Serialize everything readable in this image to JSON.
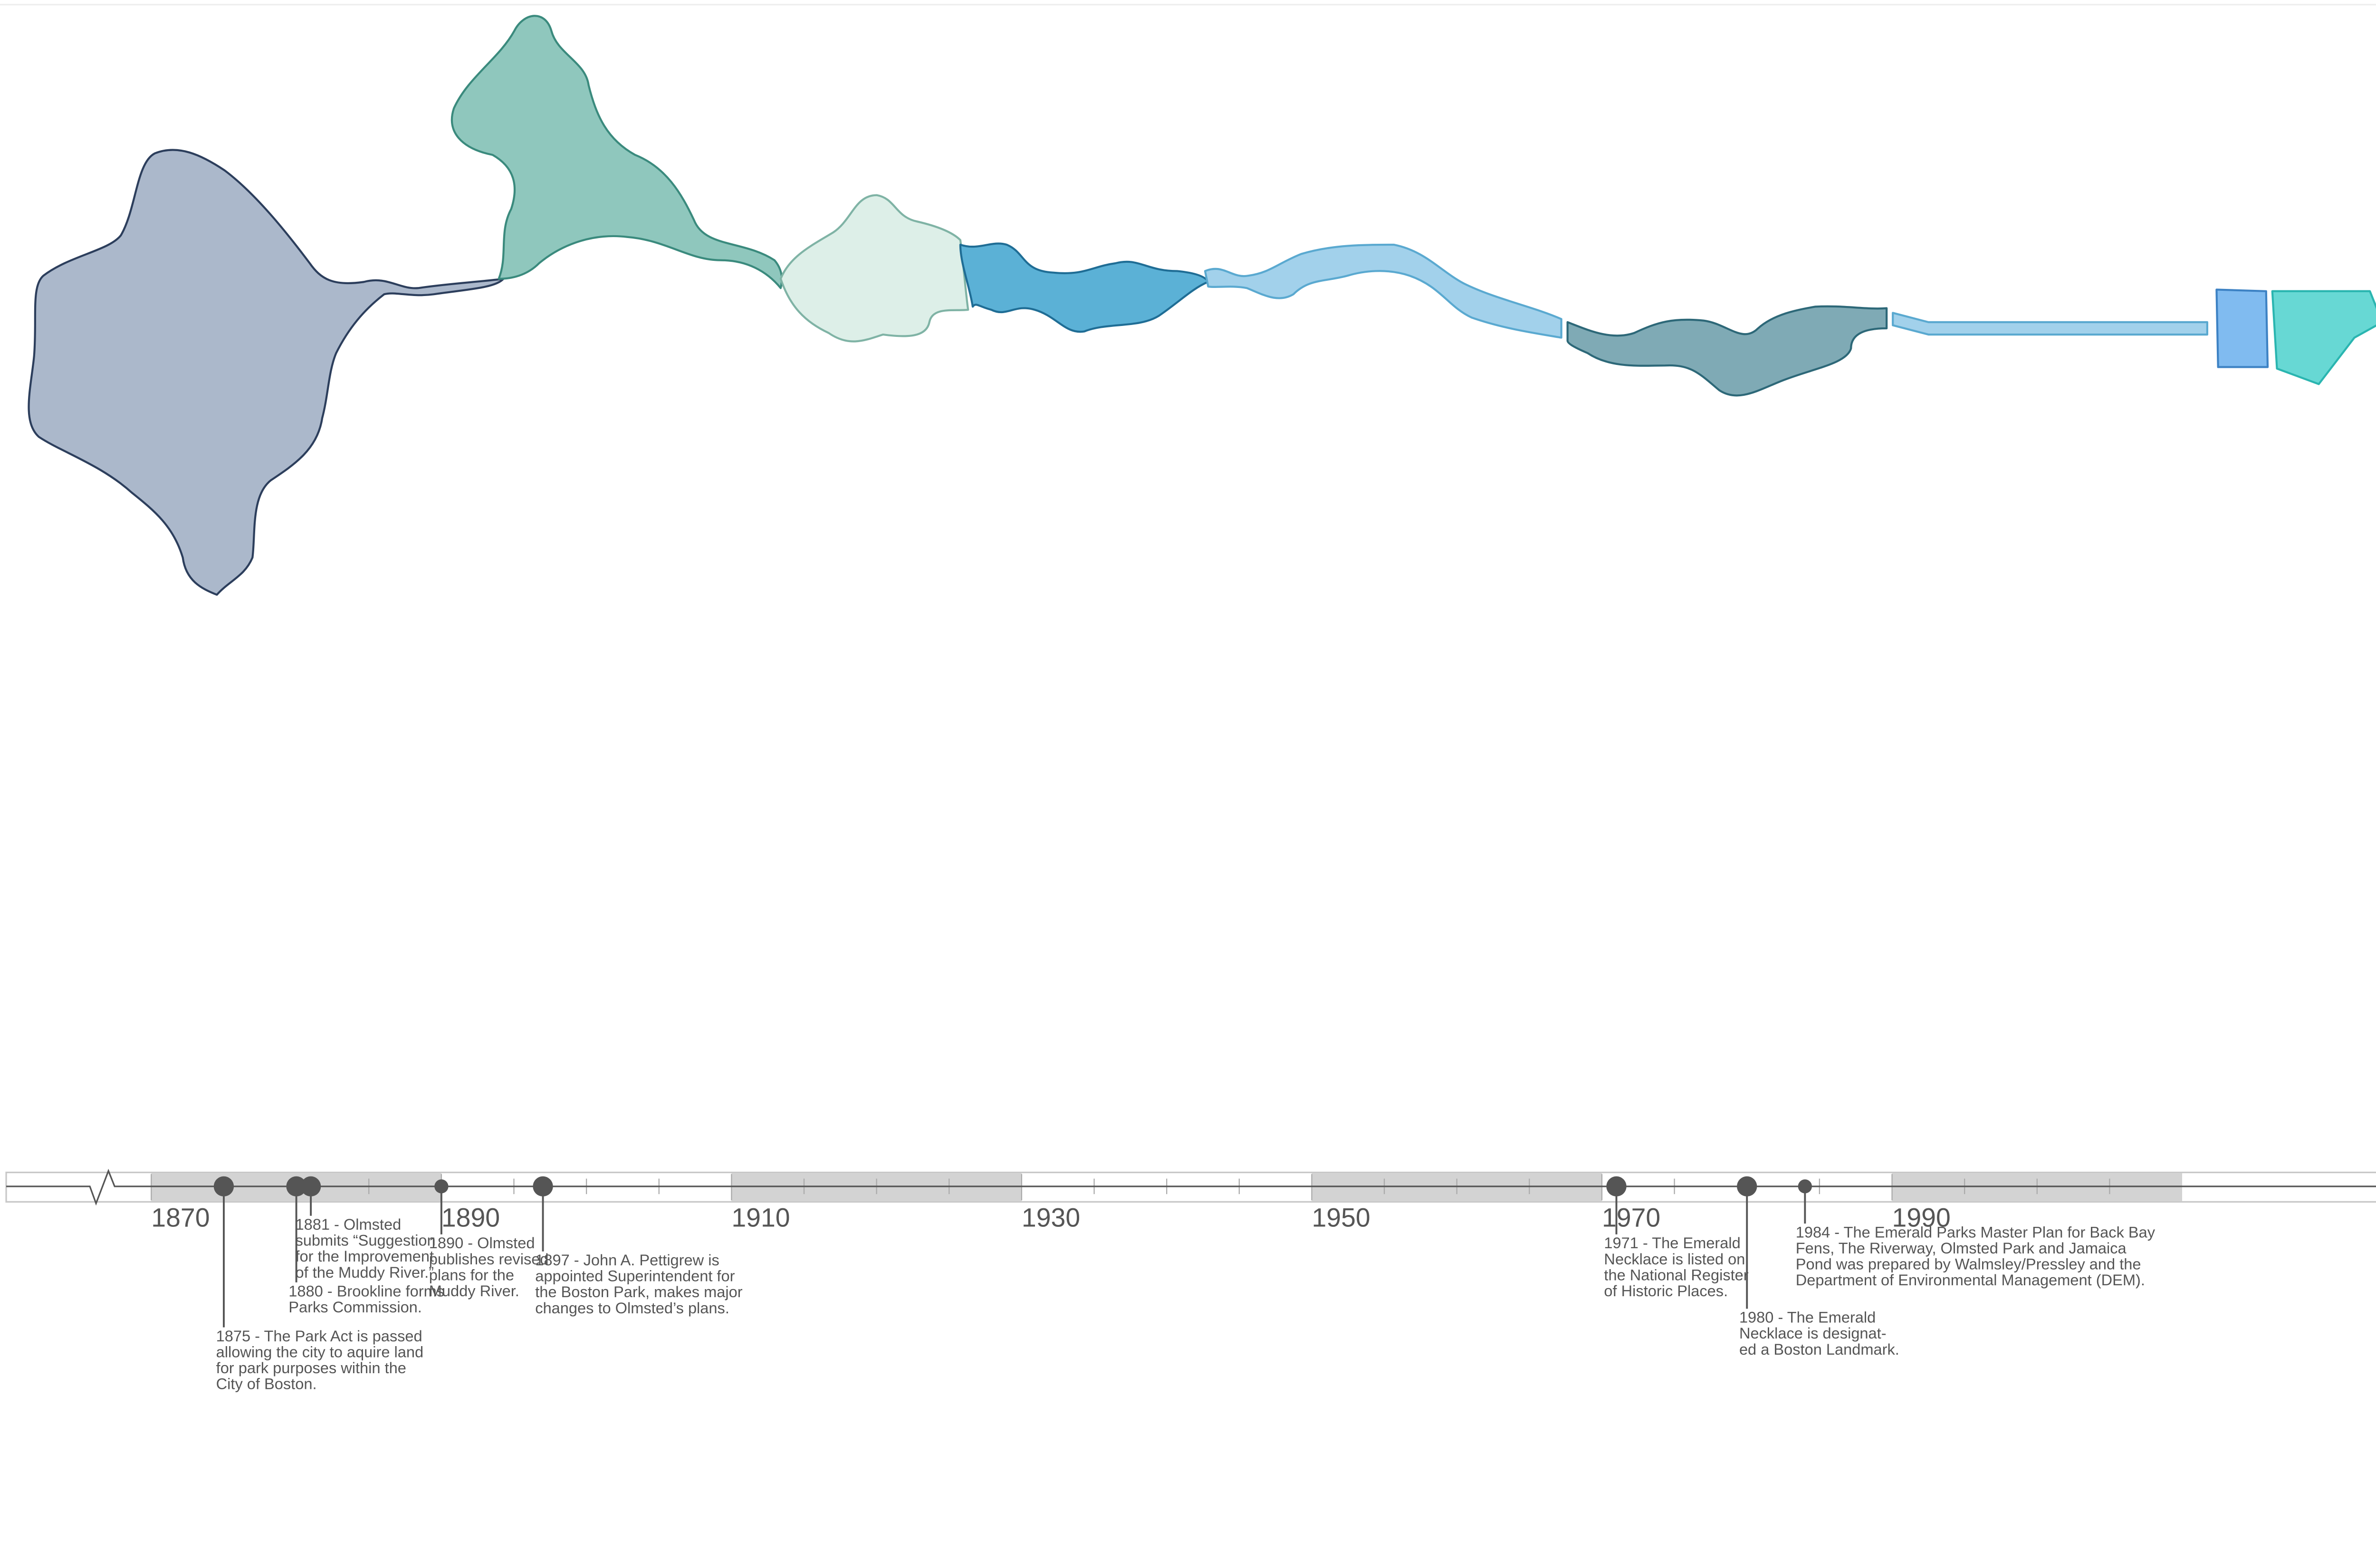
{
  "chart_data": {
    "type": "timeline",
    "xlim": [
      1860,
      2027
    ],
    "xticks": [
      1870,
      1890,
      1910,
      1930,
      1950,
      1970,
      1990
    ],
    "events": [
      {
        "year": 1875,
        "lines": [
          "1875 - The Park Act is passed",
          "allowing the city to aquire land",
          "for park purposes within the",
          "City of Boston."
        ]
      },
      {
        "year": 1880,
        "lines": [
          "1880 - Brookline forms",
          "Parks Commission."
        ]
      },
      {
        "year": 1881,
        "lines": [
          "1881 - Olmsted",
          "submits “Suggestion",
          "for the Improvement",
          "of the Muddy River.”"
        ]
      },
      {
        "year": 1890,
        "lines": [
          "1890 - Olmsted",
          "publishes revised",
          "plans for the",
          "Muddy River."
        ]
      },
      {
        "year": 1897,
        "lines": [
          "1897 - John A. Pettigrew is",
          "appointed Superintendent for",
          "the Boston Park, makes major",
          "changes to Olmsted’s plans."
        ]
      },
      {
        "year": 1971,
        "lines": [
          "1971 - The Emerald",
          "Necklace is listed on",
          "the National Register",
          "of Historic Places."
        ]
      },
      {
        "year": 1980,
        "lines": [
          "1980 - The Emerald",
          "Necklace is designat-",
          "ed a Boston Landmark."
        ]
      },
      {
        "year": 1984,
        "lines": [
          "1984 - The Emerald Parks Master Plan for Back Bay",
          "Fens, The Riverway, Olmsted Park and Jamaica",
          "Pond was prepared by Walmsley/Pressley and the",
          "Department of Environmental Management (DEM)."
        ]
      }
    ]
  }
}
